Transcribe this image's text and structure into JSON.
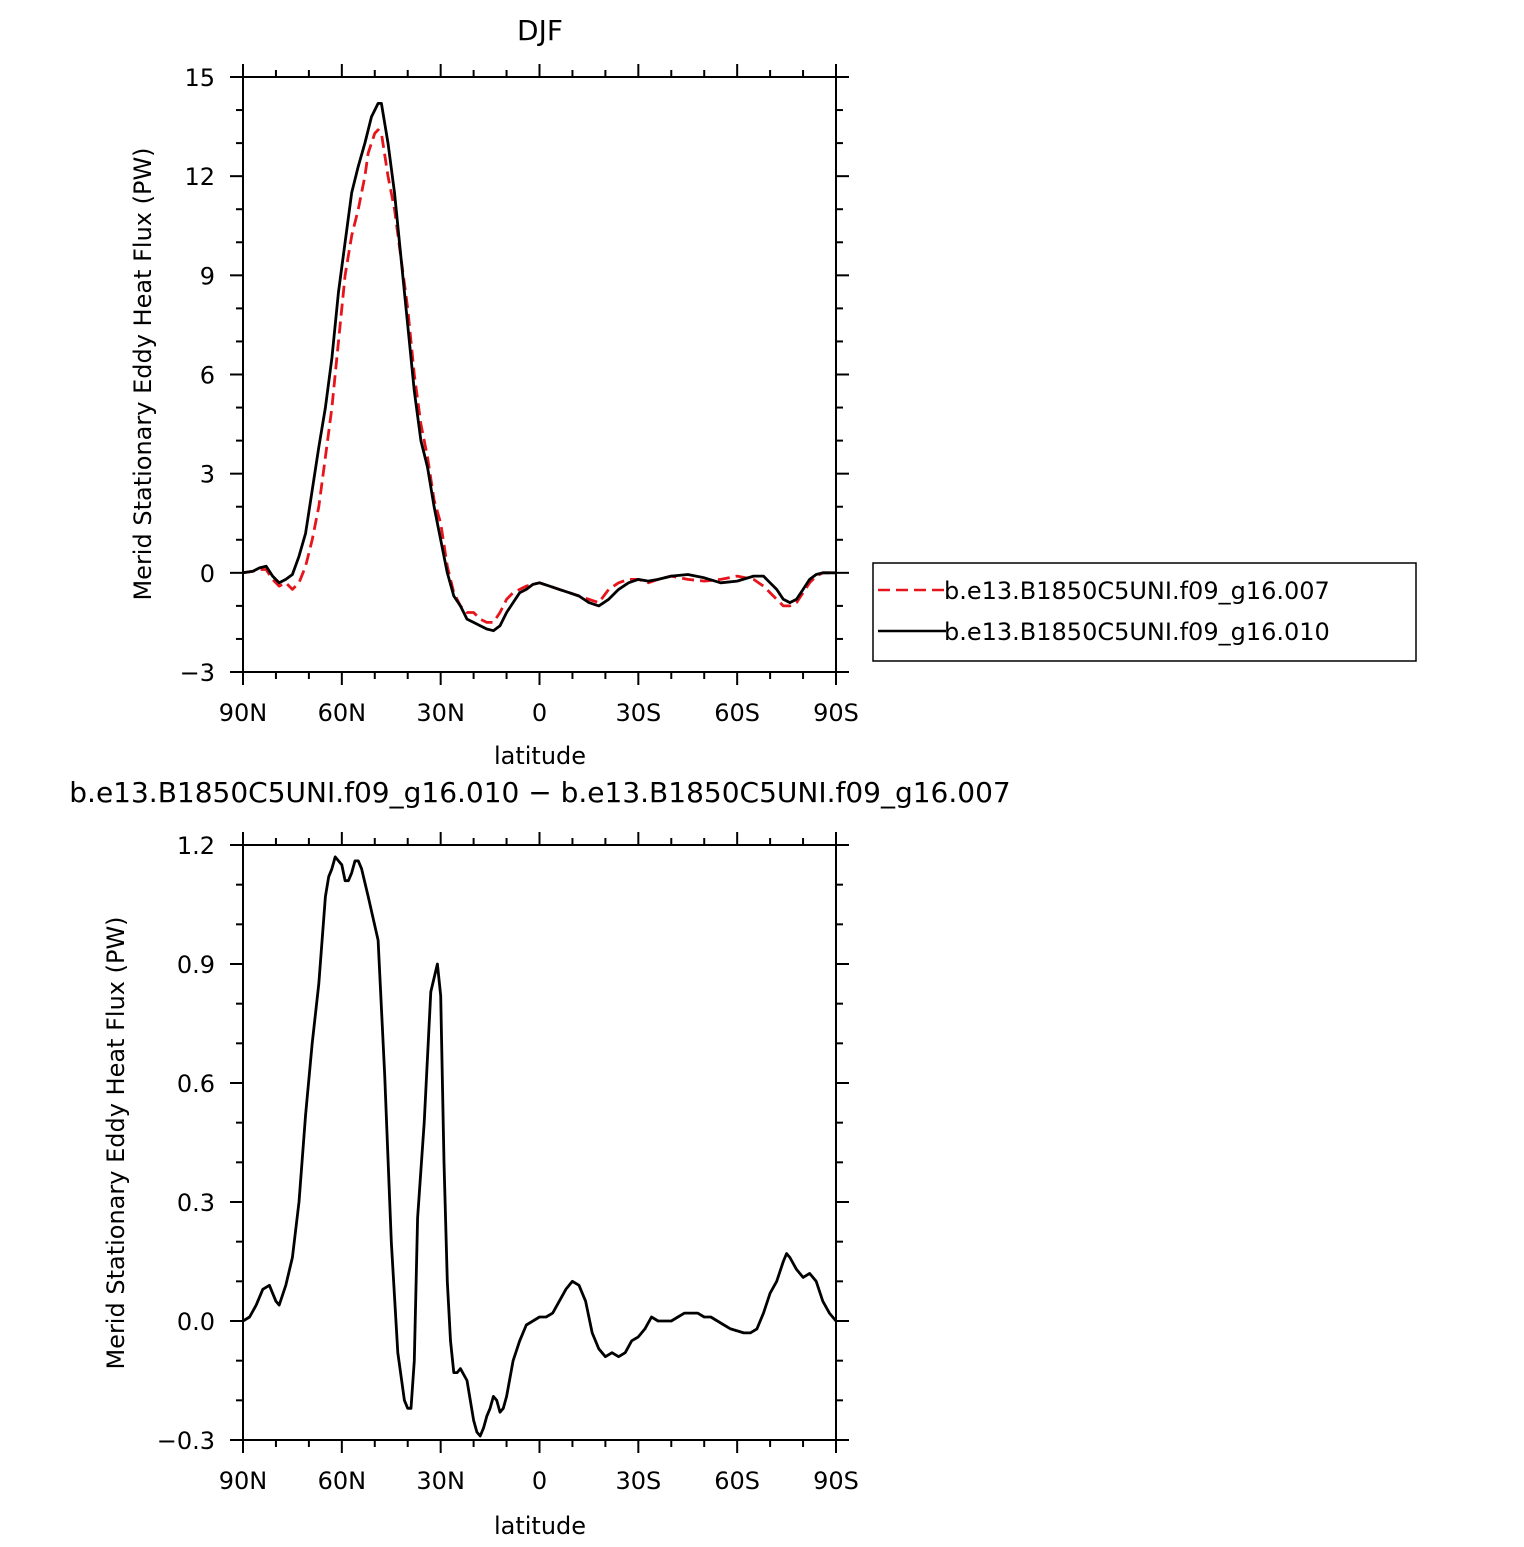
{
  "colors": {
    "exp_007": "#e8141b",
    "exp_010": "#000000",
    "diff": "#000000"
  },
  "chart_data": [
    {
      "type": "line",
      "title": "DJF",
      "xlabel": "latitude",
      "ylabel": "Merid Stationary Eddy Heat Flux (PW)",
      "xlim": [
        90,
        -90
      ],
      "ylim": [
        -3,
        15
      ],
      "x_ticks": [
        90,
        60,
        30,
        0,
        -30,
        -60,
        -90
      ],
      "x_tick_labels": [
        "90N",
        "60N",
        "30N",
        "0",
        "30S",
        "60S",
        "90S"
      ],
      "y_ticks": [
        -3,
        0,
        3,
        6,
        9,
        12,
        15
      ],
      "y_tick_labels": [
        "−3",
        "0",
        "3",
        "6",
        "9",
        "12",
        "15"
      ],
      "legend": {
        "placement": "outside right"
      },
      "series": [
        {
          "name": "b.e13.B1850C5UNI.f09_g16.007",
          "style": "dashed",
          "color": "#e8141b",
          "x": [
            90,
            87,
            85,
            83,
            81,
            79,
            77,
            75,
            73,
            71,
            69,
            67,
            65,
            63,
            61,
            59,
            57,
            55,
            53,
            52,
            51,
            50,
            49,
            48,
            46,
            44,
            42,
            40,
            38,
            36,
            34,
            32,
            30,
            28,
            26,
            24,
            22,
            20,
            18,
            16,
            14,
            12,
            10,
            8,
            6,
            4,
            2,
            0,
            -3,
            -6,
            -9,
            -12,
            -15,
            -18,
            -21,
            -24,
            -27,
            -30,
            -33,
            -36,
            -40,
            -45,
            -50,
            -55,
            -60,
            -65,
            -68,
            -70,
            -72,
            -74,
            -76,
            -78,
            -80,
            -82,
            -84,
            -86,
            -88,
            -90
          ],
          "y": [
            0,
            0.05,
            0.1,
            0.1,
            -0.2,
            -0.4,
            -0.3,
            -0.5,
            -0.3,
            0.2,
            1.0,
            2.0,
            3.5,
            5.0,
            7.0,
            9.0,
            10.2,
            11.0,
            12.0,
            12.7,
            13.0,
            13.3,
            13.4,
            13.3,
            12.0,
            11.0,
            9.5,
            8.0,
            6.0,
            4.5,
            3.5,
            2.2,
            1.5,
            0.2,
            -0.6,
            -1.0,
            -1.2,
            -1.2,
            -1.4,
            -1.5,
            -1.5,
            -1.2,
            -0.8,
            -0.6,
            -0.5,
            -0.4,
            -0.35,
            -0.3,
            -0.4,
            -0.5,
            -0.6,
            -0.7,
            -0.8,
            -0.9,
            -0.5,
            -0.3,
            -0.2,
            -0.2,
            -0.3,
            -0.2,
            -0.1,
            -0.2,
            -0.25,
            -0.2,
            -0.1,
            -0.2,
            -0.4,
            -0.6,
            -0.8,
            -1.0,
            -1.0,
            -0.9,
            -0.6,
            -0.3,
            -0.1,
            0,
            0,
            0
          ]
        },
        {
          "name": "b.e13.B1850C5UNI.f09_g16.010",
          "style": "solid",
          "color": "#000000",
          "x": [
            90,
            87,
            85,
            83,
            81,
            79,
            77,
            75,
            73,
            71,
            69,
            67,
            65,
            63,
            61,
            59,
            57,
            55,
            53,
            51,
            50,
            49,
            48,
            46,
            44,
            42,
            40,
            38,
            36,
            34,
            32,
            30,
            28,
            26,
            24,
            22,
            20,
            18,
            16,
            14,
            12,
            10,
            8,
            6,
            4,
            2,
            0,
            -3,
            -6,
            -9,
            -12,
            -15,
            -18,
            -21,
            -24,
            -27,
            -30,
            -33,
            -36,
            -40,
            -45,
            -50,
            -55,
            -60,
            -65,
            -68,
            -70,
            -72,
            -74,
            -76,
            -78,
            -80,
            -82,
            -84,
            -86,
            -88,
            -90
          ],
          "y": [
            0,
            0.05,
            0.15,
            0.2,
            -0.1,
            -0.3,
            -0.2,
            -0.05,
            0.5,
            1.2,
            2.5,
            3.8,
            5.0,
            6.5,
            8.5,
            10.0,
            11.5,
            12.3,
            13.0,
            13.8,
            14.0,
            14.2,
            14.2,
            13.0,
            11.5,
            9.5,
            7.5,
            5.5,
            4.0,
            3.2,
            2.0,
            1.0,
            0.0,
            -0.7,
            -1.0,
            -1.4,
            -1.5,
            -1.6,
            -1.7,
            -1.75,
            -1.6,
            -1.2,
            -0.9,
            -0.6,
            -0.5,
            -0.35,
            -0.3,
            -0.4,
            -0.5,
            -0.6,
            -0.7,
            -0.9,
            -1.0,
            -0.8,
            -0.5,
            -0.3,
            -0.2,
            -0.25,
            -0.2,
            -0.1,
            -0.05,
            -0.15,
            -0.3,
            -0.25,
            -0.1,
            -0.1,
            -0.3,
            -0.5,
            -0.8,
            -0.9,
            -0.8,
            -0.5,
            -0.2,
            -0.05,
            0,
            0,
            0
          ]
        }
      ]
    },
    {
      "type": "line",
      "title": "b.e13.B1850C5UNI.f09_g16.010 − b.e13.B1850C5UNI.f09_g16.007",
      "xlabel": "latitude",
      "ylabel": "Merid Stationary Eddy Heat Flux (PW)",
      "xlim": [
        90,
        -90
      ],
      "ylim": [
        -0.3,
        1.2
      ],
      "x_ticks": [
        90,
        60,
        30,
        0,
        -30,
        -60,
        -90
      ],
      "x_tick_labels": [
        "90N",
        "60N",
        "30N",
        "0",
        "30S",
        "60S",
        "90S"
      ],
      "y_ticks": [
        -0.3,
        0.0,
        0.3,
        0.6,
        0.9,
        1.2
      ],
      "y_tick_labels": [
        "−0.3",
        "0.0",
        "0.3",
        "0.6",
        "0.9",
        "1.2"
      ],
      "series": [
        {
          "style": "solid",
          "color": "#000000",
          "x": [
            90,
            88,
            86,
            84,
            82,
            81,
            80,
            79,
            77,
            75,
            73,
            71,
            69,
            67,
            65,
            64,
            63,
            62,
            61,
            60,
            59,
            58,
            57,
            56,
            55,
            54,
            52,
            49,
            47,
            45,
            43,
            41,
            40,
            39,
            38,
            37,
            35,
            33,
            31,
            30,
            29,
            28,
            27,
            26,
            25,
            24,
            22,
            20,
            19,
            18,
            17,
            16,
            15,
            14,
            13,
            12,
            11,
            10,
            8,
            6,
            4,
            2,
            0,
            -2,
            -4,
            -6,
            -8,
            -10,
            -12,
            -14,
            -16,
            -18,
            -20,
            -22,
            -24,
            -26,
            -28,
            -30,
            -32,
            -34,
            -36,
            -38,
            -40,
            -42,
            -44,
            -46,
            -48,
            -50,
            -52,
            -54,
            -56,
            -58,
            -60,
            -62,
            -64,
            -66,
            -68,
            -70,
            -72,
            -74,
            -75,
            -76,
            -78,
            -80,
            -82,
            -84,
            -86,
            -88,
            -90
          ],
          "y": [
            0.0,
            0.01,
            0.04,
            0.08,
            0.09,
            0.07,
            0.05,
            0.04,
            0.09,
            0.16,
            0.3,
            0.52,
            0.7,
            0.85,
            1.07,
            1.12,
            1.14,
            1.17,
            1.16,
            1.15,
            1.11,
            1.11,
            1.13,
            1.16,
            1.16,
            1.14,
            1.07,
            0.96,
            0.62,
            0.2,
            -0.08,
            -0.2,
            -0.22,
            -0.22,
            -0.1,
            0.26,
            0.5,
            0.83,
            0.9,
            0.82,
            0.4,
            0.1,
            -0.05,
            -0.13,
            -0.13,
            -0.12,
            -0.15,
            -0.25,
            -0.28,
            -0.29,
            -0.27,
            -0.24,
            -0.22,
            -0.19,
            -0.2,
            -0.23,
            -0.22,
            -0.19,
            -0.1,
            -0.05,
            -0.01,
            0.0,
            0.01,
            0.01,
            0.02,
            0.05,
            0.08,
            0.1,
            0.09,
            0.05,
            -0.03,
            -0.07,
            -0.09,
            -0.08,
            -0.09,
            -0.08,
            -0.05,
            -0.04,
            -0.02,
            0.01,
            0.0,
            0.0,
            0.0,
            0.01,
            0.02,
            0.02,
            0.02,
            0.01,
            0.01,
            0.0,
            -0.01,
            -0.02,
            -0.025,
            -0.03,
            -0.03,
            -0.02,
            0.02,
            0.07,
            0.1,
            0.15,
            0.17,
            0.16,
            0.13,
            0.11,
            0.12,
            0.1,
            0.05,
            0.02,
            0.0
          ]
        }
      ]
    }
  ]
}
